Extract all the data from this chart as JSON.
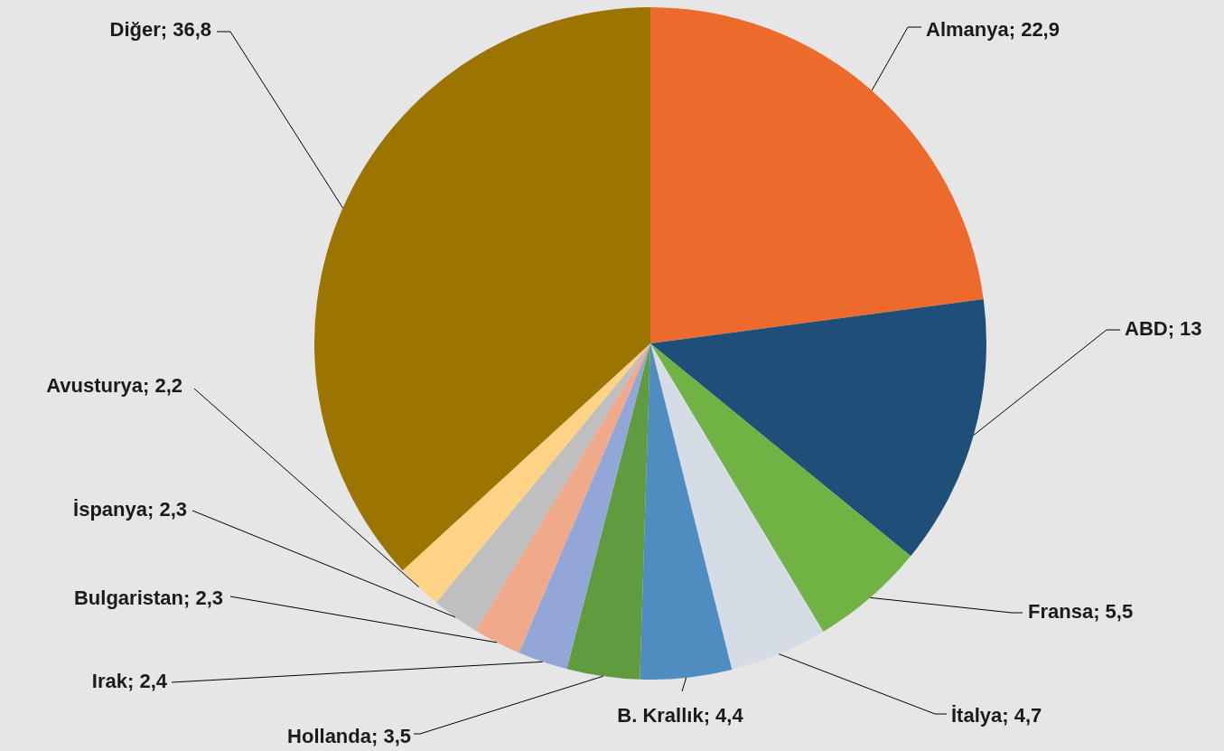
{
  "chart_data": {
    "type": "pie",
    "categories": [
      "Almanya",
      "ABD",
      "Fransa",
      "İtalya",
      "B. Krallık",
      "Hollanda",
      "Irak",
      "Bulgaristan",
      "İspanya",
      "Avusturya",
      "Diğer"
    ],
    "values": [
      22.9,
      13,
      5.5,
      4.7,
      4.4,
      3.5,
      2.4,
      2.3,
      2.3,
      2.2,
      36.8
    ],
    "value_labels": [
      "22,9",
      "13",
      "5,5",
      "4,7",
      "4,4",
      "3,5",
      "2,4",
      "2,3",
      "2,3",
      "2,2",
      "36,8"
    ],
    "colors": [
      "#ec6a2c",
      "#1f4e79",
      "#70b244",
      "#d6dce5",
      "#4f8cc0",
      "#5f9c3f",
      "#92a6d8",
      "#f0a98a",
      "#bfbfbf",
      "#fed385",
      "#9c7400"
    ]
  }
}
